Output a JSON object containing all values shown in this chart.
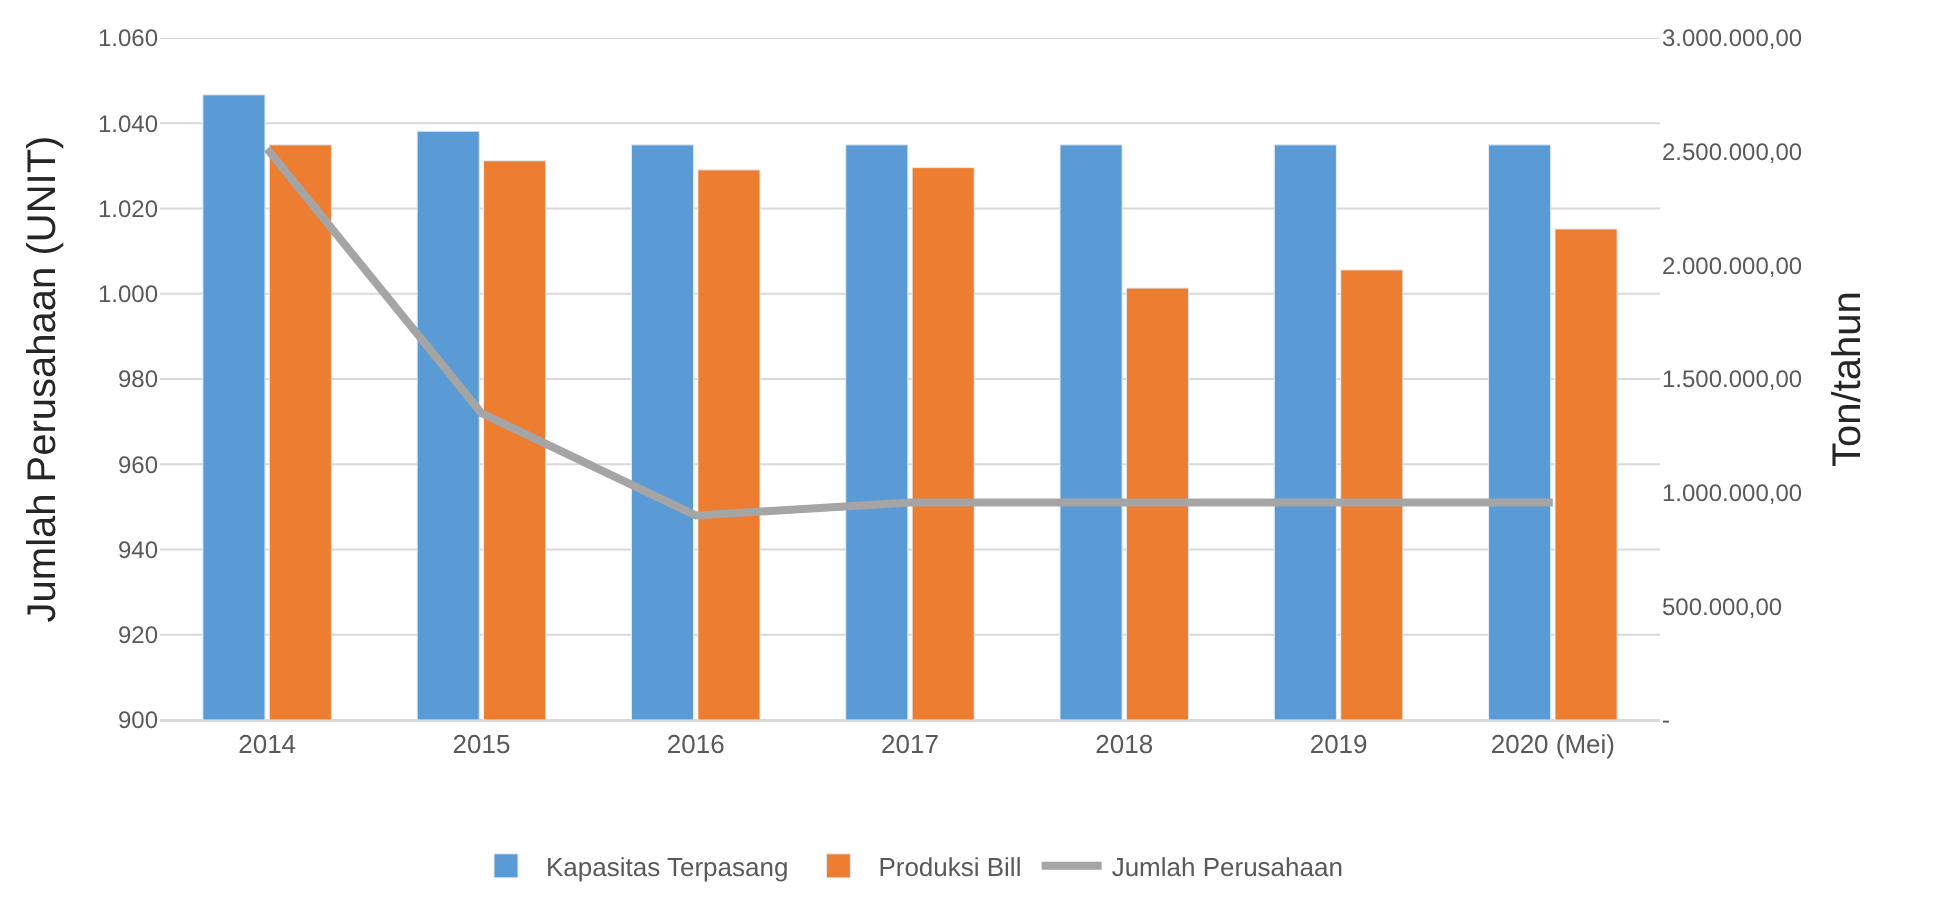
{
  "chart_data": {
    "type": "bar",
    "ylabel": "Jumlah Perusahaan (UNIT)",
    "y2label": "Ton/tahun",
    "categories": [
      "2014",
      "2015",
      "2016",
      "2017",
      "2018",
      "2019",
      "2020 (Mei)"
    ],
    "series": [
      {
        "name": "Kapasitas Terpasang",
        "color": "#5b9bd5",
        "axis": "y2",
        "values": [
          2750000,
          2590000,
          2530000,
          2530000,
          2530000,
          2530000,
          2530000
        ]
      },
      {
        "name": "Produksi Bill",
        "color": "#ed7d31",
        "axis": "y2",
        "values": [
          2530000,
          2460000,
          2420000,
          2430000,
          1900000,
          1980000,
          2160000
        ]
      },
      {
        "name": "Jumlah Perusahaan",
        "color": "#a5a5a5",
        "type": "line",
        "marker": "none",
        "values": [
          1034,
          972,
          948,
          951,
          951,
          951,
          951
        ]
      }
    ],
    "ylim": [
      900,
      1060
    ],
    "yticks": [
      900,
      920,
      940,
      960,
      980,
      {
        "value": 1000,
        "label": "1.000"
      },
      {
        "value": 1020,
        "label": "1.020"
      },
      {
        "value": 1040,
        "label": "1.040"
      },
      {
        "value": 1060,
        "label": "1.060"
      }
    ],
    "y2lim": [
      0,
      3000000
    ],
    "y2ticks": [
      {
        "value": 0,
        "label": "-"
      },
      {
        "value": 500000,
        "label": "500.000,00"
      },
      {
        "value": 1000000,
        "label": "1.000.000,00"
      },
      {
        "value": 1500000,
        "label": "1.500.000,00"
      },
      {
        "value": 2000000,
        "label": "2.000.000,00"
      },
      {
        "value": 2500000,
        "label": "2.500.000,00"
      },
      {
        "value": 3000000,
        "label": "3.000.000,00"
      }
    ],
    "grid": "y",
    "legend": "bottom"
  }
}
